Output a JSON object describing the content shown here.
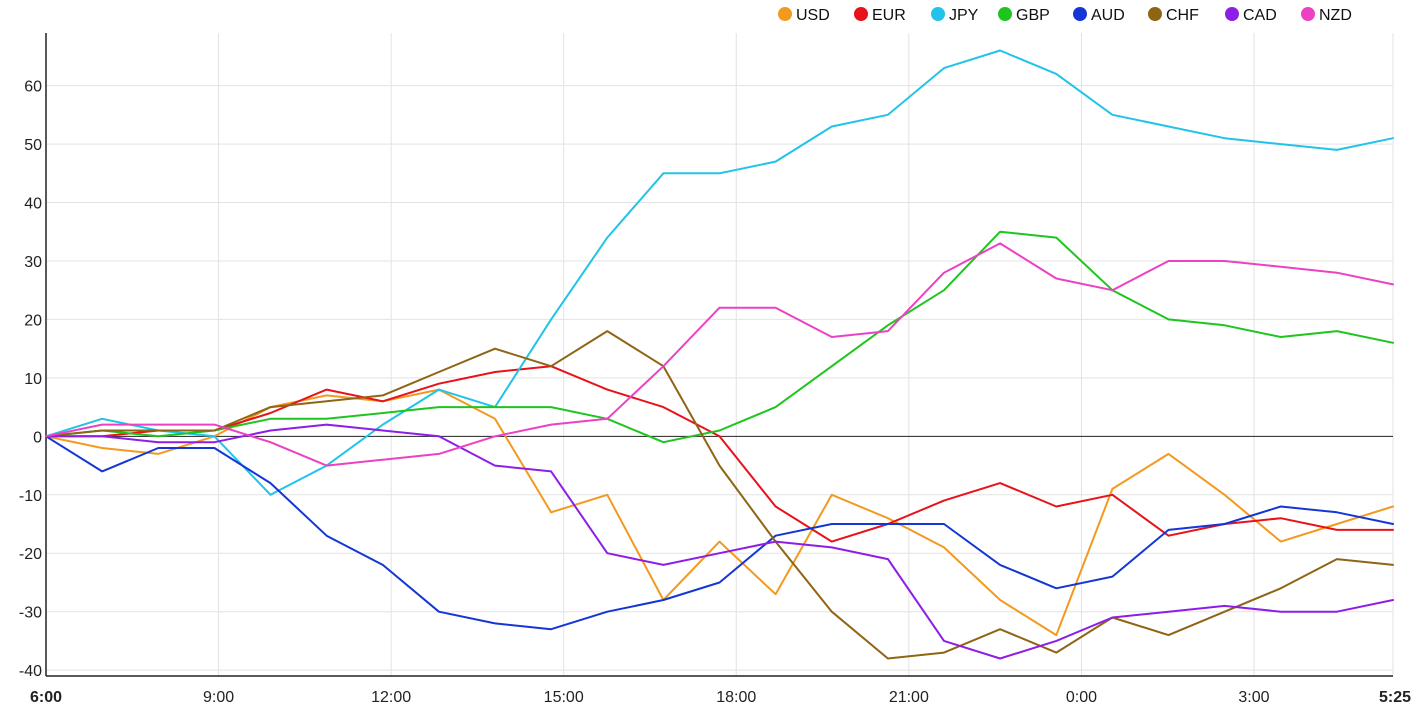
{
  "chart_data": {
    "type": "line",
    "title": "",
    "xlabel": "",
    "ylabel": "",
    "ylim": [
      -41,
      69
    ],
    "grid": true,
    "legend_position": "top-right",
    "x_ticks": [
      "6:00",
      "9:00",
      "12:00",
      "15:00",
      "18:00",
      "21:00",
      "0:00",
      "3:00",
      "5:25"
    ],
    "y_ticks": [
      60,
      50,
      40,
      30,
      20,
      10,
      0,
      -10,
      -20,
      -30,
      -40
    ],
    "x": [
      "6:00",
      "7:00",
      "8:00",
      "9:00",
      "10:00",
      "11:00",
      "12:00",
      "13:00",
      "14:00",
      "15:00",
      "16:00",
      "17:00",
      "18:00",
      "19:00",
      "20:00",
      "21:00",
      "22:00",
      "23:00",
      "0:00",
      "1:00",
      "2:00",
      "3:00",
      "4:00",
      "5:00",
      "5:25"
    ],
    "series": [
      {
        "name": "USD",
        "color": "#f29a1f",
        "values": [
          0,
          -2,
          -3,
          0,
          5,
          7,
          6,
          8,
          3,
          -13,
          -10,
          -28,
          -18,
          -27,
          -10,
          -14,
          -19,
          -28,
          -34,
          -9,
          -3,
          -10,
          -18,
          -15,
          -12
        ]
      },
      {
        "name": "EUR",
        "color": "#e8121b",
        "values": [
          0,
          0,
          1,
          1,
          4,
          8,
          6,
          9,
          11,
          12,
          8,
          5,
          0,
          -12,
          -18,
          -15,
          -11,
          -8,
          -12,
          -10,
          -17,
          -15,
          -14,
          -16,
          -16
        ]
      },
      {
        "name": "JPY",
        "color": "#21c3e8",
        "values": [
          0,
          3,
          1,
          0,
          -10,
          -5,
          2,
          8,
          5,
          20,
          34,
          45,
          45,
          47,
          53,
          55,
          63,
          66,
          62,
          55,
          53,
          51,
          50,
          49,
          51
        ]
      },
      {
        "name": "GBP",
        "color": "#1ec51e",
        "values": [
          0,
          1,
          0,
          1,
          3,
          3,
          4,
          5,
          5,
          5,
          3,
          -1,
          1,
          5,
          12,
          19,
          25,
          35,
          34,
          25,
          20,
          19,
          17,
          18,
          16
        ]
      },
      {
        "name": "AUD",
        "color": "#1436d6",
        "values": [
          0,
          -6,
          -2,
          -2,
          -8,
          -17,
          -22,
          -30,
          -32,
          -33,
          -30,
          -28,
          -25,
          -17,
          -15,
          -15,
          -15,
          -22,
          -26,
          -24,
          -16,
          -15,
          -12,
          -13,
          -15
        ]
      },
      {
        "name": "CHF",
        "color": "#8f6414",
        "values": [
          0,
          1,
          1,
          1,
          5,
          6,
          7,
          11,
          15,
          12,
          18,
          12,
          -5,
          -18,
          -30,
          -38,
          -37,
          -33,
          -37,
          -31,
          -34,
          -30,
          -26,
          -21,
          -22
        ]
      },
      {
        "name": "CAD",
        "color": "#8e1ee6",
        "values": [
          0,
          0,
          -1,
          -1,
          1,
          2,
          1,
          0,
          -5,
          -6,
          -20,
          -22,
          -20,
          -18,
          -19,
          -21,
          -35,
          -38,
          -35,
          -31,
          -30,
          -29,
          -30,
          -30,
          -28
        ]
      },
      {
        "name": "NZD",
        "color": "#ec41c3",
        "values": [
          0,
          2,
          2,
          2,
          -1,
          -5,
          -4,
          -3,
          0,
          2,
          3,
          12,
          22,
          22,
          17,
          18,
          28,
          33,
          27,
          25,
          30,
          30,
          29,
          28,
          26
        ]
      }
    ]
  }
}
